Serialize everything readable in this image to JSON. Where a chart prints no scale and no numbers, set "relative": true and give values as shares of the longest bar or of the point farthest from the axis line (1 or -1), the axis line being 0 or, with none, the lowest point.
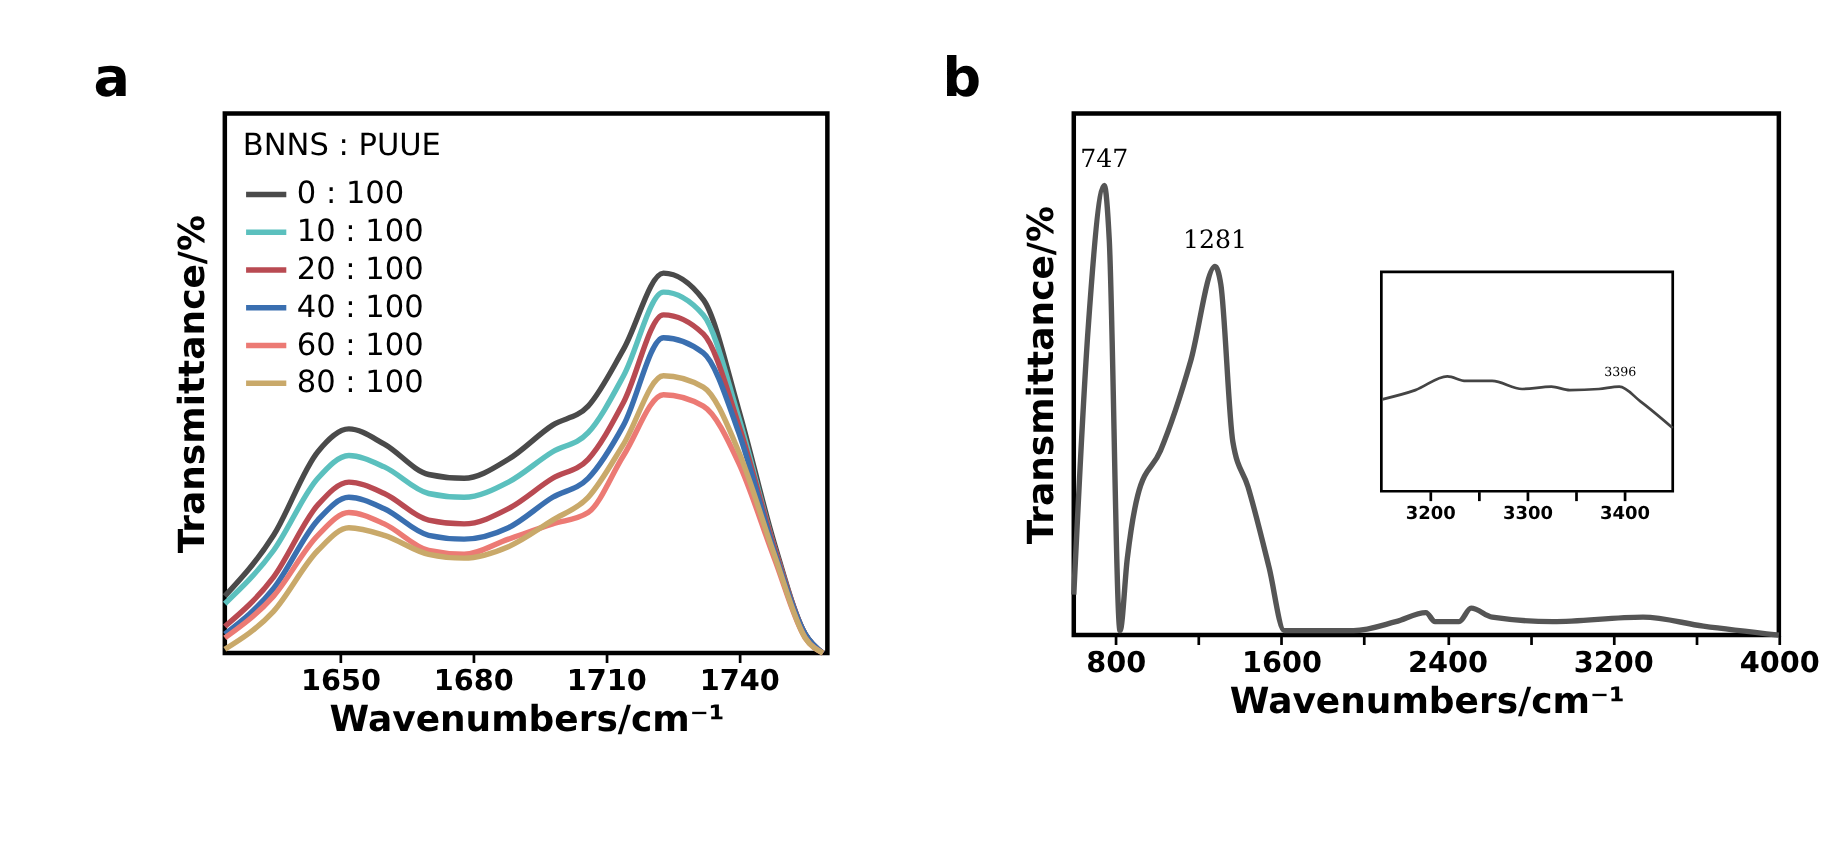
{
  "chart_data": [
    {
      "type": "line",
      "title": "a",
      "xlabel": "Wavenumbers/cm⁻¹",
      "ylabel": "Transmittance/%",
      "relative": true,
      "xlim": [
        1624,
        1760
      ],
      "xticks": [
        1650,
        1680,
        1710,
        1740
      ],
      "legend": "top left",
      "legend_title": "BNNS : PUUE",
      "x": [
        1624,
        1635,
        1645,
        1652,
        1660,
        1670,
        1678,
        1688,
        1698,
        1706,
        1714,
        1723,
        1732,
        1740,
        1748,
        1755,
        1759
      ],
      "series": [
        {
          "name": "0 : 100",
          "color": "#4a4a4a",
          "values": [
            0.15,
            0.31,
            0.53,
            0.59,
            0.55,
            0.47,
            0.46,
            0.51,
            0.6,
            0.65,
            0.8,
            1.0,
            0.93,
            0.64,
            0.29,
            0.05,
            0
          ]
        },
        {
          "name": "10 : 100",
          "color": "#5bc0be",
          "values": [
            0.13,
            0.27,
            0.46,
            0.52,
            0.49,
            0.42,
            0.41,
            0.45,
            0.53,
            0.58,
            0.73,
            0.95,
            0.89,
            0.62,
            0.28,
            0.05,
            0
          ]
        },
        {
          "name": "20 : 100",
          "color": "#b94a52",
          "values": [
            0.07,
            0.2,
            0.39,
            0.45,
            0.42,
            0.35,
            0.34,
            0.38,
            0.46,
            0.51,
            0.66,
            0.89,
            0.84,
            0.6,
            0.28,
            0.05,
            0
          ]
        },
        {
          "name": "40 : 100",
          "color": "#3a6fb0",
          "values": [
            0.05,
            0.17,
            0.35,
            0.41,
            0.38,
            0.31,
            0.3,
            0.33,
            0.41,
            0.46,
            0.6,
            0.83,
            0.79,
            0.58,
            0.27,
            0.05,
            0
          ]
        },
        {
          "name": "60 : 100",
          "color": "#ec7a74",
          "values": [
            0.04,
            0.15,
            0.31,
            0.37,
            0.34,
            0.27,
            0.26,
            0.3,
            0.34,
            0.37,
            0.52,
            0.68,
            0.65,
            0.5,
            0.25,
            0.04,
            0
          ]
        },
        {
          "name": "80 : 100",
          "color": "#c9a96a",
          "values": [
            0.01,
            0.11,
            0.27,
            0.33,
            0.31,
            0.26,
            0.25,
            0.28,
            0.35,
            0.41,
            0.55,
            0.73,
            0.7,
            0.53,
            0.26,
            0.04,
            0
          ]
        }
      ]
    },
    {
      "type": "line",
      "title": "b",
      "xlabel": "Wavenumbers/cm⁻¹",
      "ylabel": "Transmittance/%",
      "relative": true,
      "xlim": [
        600,
        4000
      ],
      "xticks": [
        800,
        {
          "value": 1200,
          "label": null
        },
        1600,
        {
          "value": 2000,
          "label": null
        },
        2400,
        {
          "value": 2800,
          "label": null
        },
        3200,
        {
          "value": 3600,
          "label": null
        },
        4000
      ],
      "x": [
        600,
        669,
        747,
        771,
        823,
        858,
        908,
        1018,
        1164,
        1281,
        1309,
        1367,
        1440,
        1542,
        1615,
        1745,
        1949,
        2153,
        2298,
        2342,
        2458,
        2516,
        2618,
        2909,
        3345,
        3636,
        4000
      ],
      "series": [
        {
          "color": "#555555",
          "values": [
            0.09,
            0.68,
            1.0,
            0.88,
            0.01,
            0.17,
            0.31,
            0.41,
            0.61,
            0.82,
            0.78,
            0.43,
            0.33,
            0.15,
            0.01,
            0.01,
            0.01,
            0.03,
            0.05,
            0.03,
            0.03,
            0.06,
            0.04,
            0.03,
            0.04,
            0.02,
            0.0
          ]
        }
      ],
      "annotations": [
        {
          "text": "747",
          "x": 747,
          "y": 1.0
        },
        {
          "text": "1281",
          "x": 1281,
          "y": 0.82
        }
      ]
    },
    {
      "type": "line",
      "relative": true,
      "xlim": [
        3150,
        3450
      ],
      "xticks": [
        3200,
        {
          "value": 3250,
          "label": null
        },
        3300,
        {
          "value": 3350,
          "label": null
        },
        3400
      ],
      "x": [
        3151,
        3185,
        3218,
        3237,
        3264,
        3295,
        3325,
        3344,
        3374,
        3395,
        3417,
        3450
      ],
      "series": [
        {
          "color": "#444444",
          "values": [
            0.8,
            0.88,
            1.0,
            0.96,
            0.96,
            0.89,
            0.91,
            0.88,
            0.89,
            0.91,
            0.78,
            0.55
          ]
        }
      ],
      "annotations": [
        {
          "text": "3396",
          "x": 3396,
          "y": 0.91
        }
      ]
    }
  ]
}
